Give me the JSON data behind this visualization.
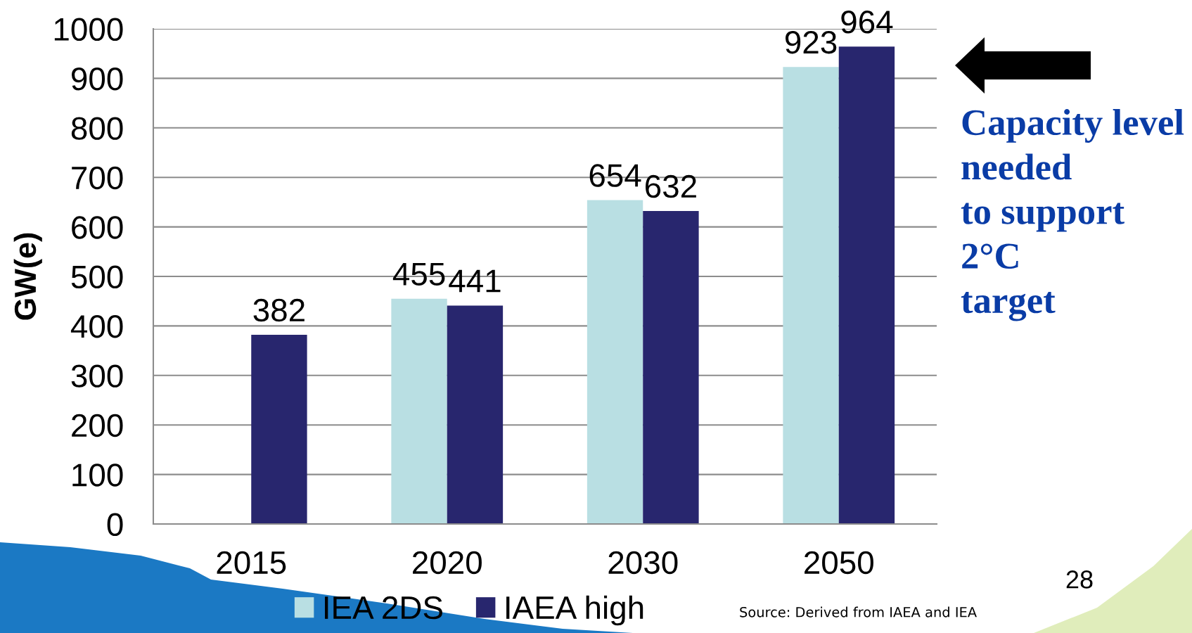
{
  "chart_data": {
    "type": "bar",
    "ylabel": "GW(e)",
    "categories": [
      "2015",
      "2020",
      "2030",
      "2050"
    ],
    "series": [
      {
        "name": "IEA 2DS",
        "color": "#b9dfe3",
        "values": [
          null,
          455,
          654,
          923
        ]
      },
      {
        "name": "IAEA high",
        "color": "#28266e",
        "values": [
          382,
          441,
          632,
          964
        ]
      }
    ],
    "ylim": [
      0,
      1000
    ],
    "yticks": [
      0,
      100,
      200,
      300,
      400,
      500,
      600,
      700,
      800,
      900,
      1000
    ],
    "grid": "y",
    "legend": "bottom",
    "data_labels": true,
    "annotations": [
      "Capacity level\nneeded\nto support\n2°C\ntarget",
      "Source: Derived from IAEA and IEA",
      "28"
    ]
  }
}
